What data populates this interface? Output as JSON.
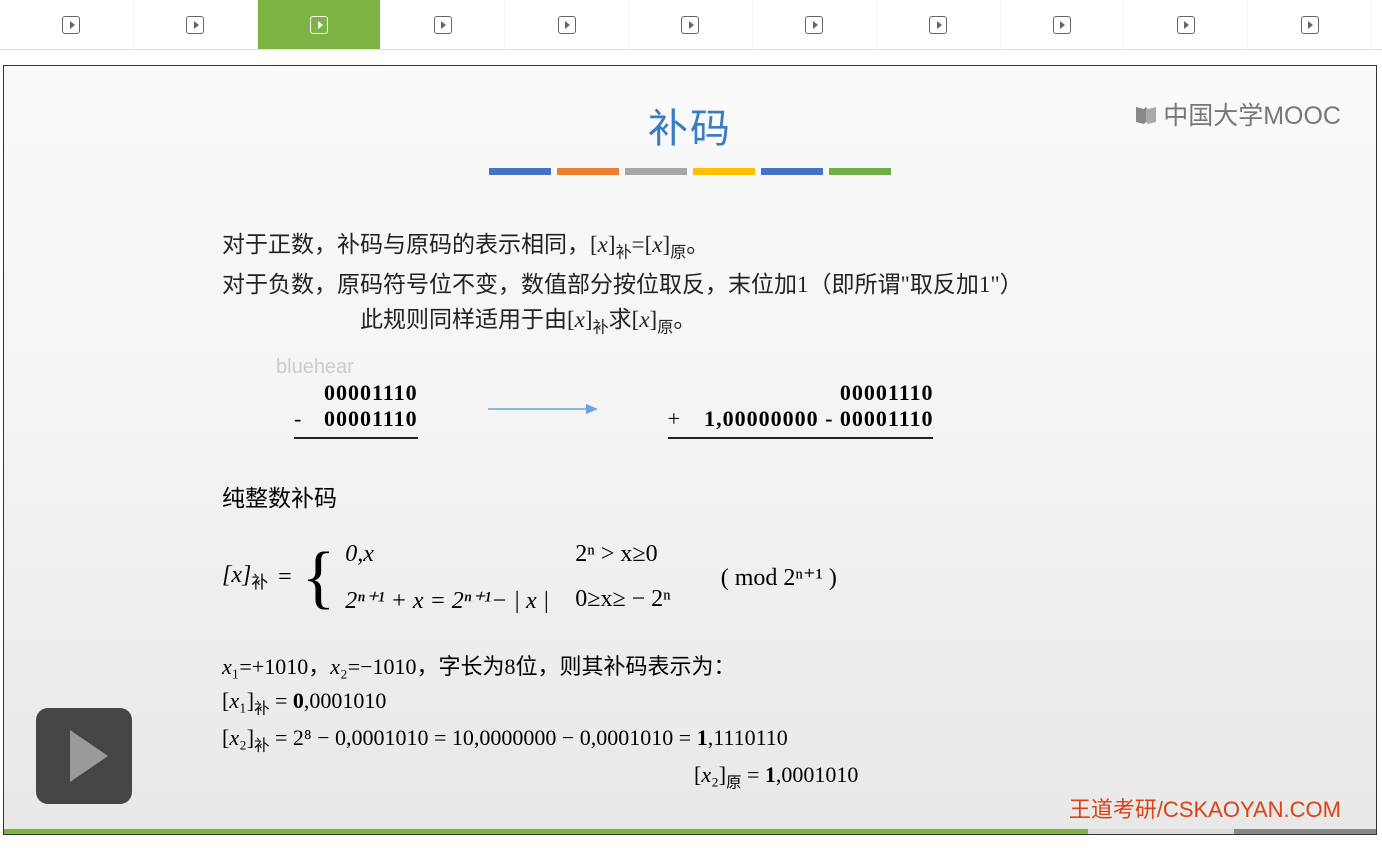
{
  "tabs": {
    "count": 11,
    "active_index": 2
  },
  "slide": {
    "title": "补码",
    "color_bars": [
      "#4472c4",
      "#ed7d31",
      "#a6a6a6",
      "#ffc000",
      "#4472c4",
      "#70ad47"
    ],
    "mooc_logo_text": "中国大学MOOC",
    "paragraph": {
      "line1_pre": "对于正数，补码与原码的表示相同，[",
      "line1_x1": "x",
      "line1_sub1": "补",
      "line1_mid": "=[",
      "line1_x2": "x",
      "line1_sub2": "原",
      "line1_end": "。",
      "line2": "对于负数，原码符号位不变，数值部分按位取反，末位加1（即所谓\"取反加1\"）",
      "line3_pre": "此规则同样适用于由[",
      "line3_x1": "x",
      "line3_sub1": "补",
      "line3_mid": "求[",
      "line3_x2": "x",
      "line3_sub2": "原",
      "line3_end": "。"
    },
    "watermark": "bluehear",
    "arithmetic": {
      "left_top": "00001110",
      "left_sign": "-",
      "left_bot": "00001110",
      "right_top": "00001110",
      "right_sign": "+",
      "right_bot": "1,00000000 - 00001110",
      "arrow_color": "#6ba5d8"
    },
    "integer_label": "纯整数补码",
    "formula": {
      "left_label": "[x]",
      "left_sub": "补",
      "equals": " = ",
      "case1_expr": "0,x",
      "case1_cond": "2ⁿ > x≥0",
      "case2_expr": "2ⁿ⁺¹ + x = 2ⁿ⁺¹− | x |",
      "case2_cond": "0≥x≥ − 2ⁿ",
      "mod": "( mod  2ⁿ⁺¹ )"
    },
    "examples": {
      "line1": "x₁=+1010，x₂=−1010，字长为8位，则其补码表示为：",
      "line2_left": "[x₁]",
      "line2_sub": "补",
      "line2_rest": " = 0,0001010",
      "line2_bold": "0",
      "line3_left": "[x₂]",
      "line3_sub": "补",
      "line3_rest": " = 2⁸ − 0,0001010 = 10,0000000 − 0,0001010 = 1,1110110",
      "line3_bold": "1",
      "line4_left": "[x₂]",
      "line4_sub": "原",
      "line4_rest": " = 1,0001010",
      "line4_bold": "1"
    },
    "footer_brand": "王道考研/CSKAOYAN.COM"
  },
  "player": {
    "progress_pct": 79,
    "progress_fill_color": "#7cb342",
    "progress_bg_color": "#dcdcdc"
  }
}
